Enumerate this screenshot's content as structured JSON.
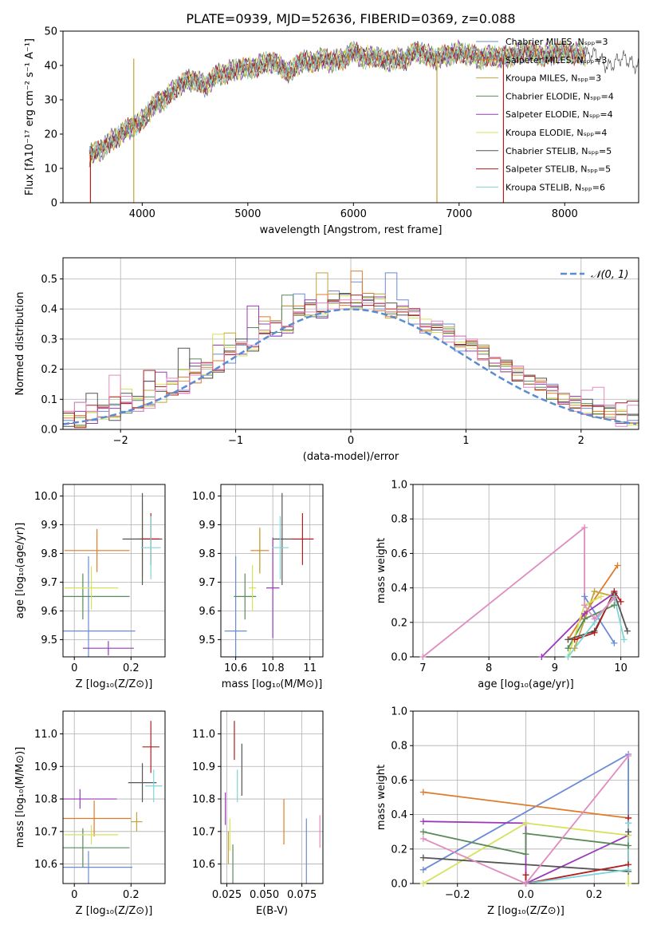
{
  "title": "PLATE=0939, MJD=52636, FIBERID=0369, z=0.088",
  "colors": [
    "#6a8bd6",
    "#e07b2a",
    "#c3a33a",
    "#5a8a5a",
    "#9a3ab8",
    "#d6e35a",
    "#555555",
    "#b01e1e",
    "#7ed6d6"
  ],
  "chart_data": [
    {
      "id": "spectrum",
      "type": "line",
      "xlabel": "wavelength [Angstrom, rest frame]",
      "ylabel": "Flux [fλ10⁻¹⁷ erg cm⁻² s⁻¹ A⁻¹]",
      "xlim": [
        3250,
        8700
      ],
      "ylim": [
        0,
        50
      ],
      "xticks": [
        4000,
        5000,
        6000,
        7000,
        8000
      ],
      "yticks": [
        0,
        10,
        20,
        30,
        40,
        50
      ],
      "grid": false,
      "legend_position": "right",
      "legend": [
        "Chabrier MILES, Nₛₚₚ=3",
        "Salpeter MILES, Nₛₚₚ=3",
        "Kroupa MILES, Nₛₚₚ=3",
        "Chabrier ELODIE, Nₛₚₚ=4",
        "Salpeter ELODIE, Nₛₚₚ=4",
        "Kroupa ELODIE, Nₛₚₚ=4",
        "Chabrier STELIB, Nₛₚₚ=5",
        "Salpeter STELIB, Nₛₚₚ=5",
        "Kroupa STELIB, Nₛₚₚ=6"
      ],
      "x": [
        3500,
        3600,
        3700,
        3800,
        3900,
        4000,
        4100,
        4200,
        4300,
        4400,
        4500,
        4600,
        4700,
        4800,
        4900,
        5000,
        5100,
        5200,
        5300,
        5400,
        5500,
        5600,
        5700,
        5800,
        5900,
        6000,
        6100,
        6200,
        6300,
        6400,
        6500,
        6600,
        6700,
        6800,
        6900,
        7000,
        7100,
        7200,
        7300,
        7400,
        7600,
        7800,
        8000,
        8200,
        8400
      ],
      "y": [
        14,
        15,
        18,
        20,
        22,
        24,
        28,
        30,
        33,
        35,
        36,
        34,
        37,
        38,
        39,
        39,
        40,
        41,
        40,
        38,
        41,
        41,
        42,
        41,
        42,
        44,
        42,
        43,
        41,
        42,
        42,
        44,
        43,
        42,
        43,
        44,
        43,
        42,
        43,
        42,
        44,
        43,
        44,
        43,
        41
      ],
      "vertical_drops": [
        3510,
        3920,
        6790,
        7420
      ]
    },
    {
      "id": "residuals",
      "type": "histogram",
      "xlabel": "(data-model)/error",
      "ylabel": "Normed distribution",
      "xlim": [
        -2.5,
        2.5
      ],
      "ylim": [
        0,
        0.57
      ],
      "xticks": [
        -2,
        -1,
        0,
        1,
        2
      ],
      "yticks": [
        0.0,
        0.1,
        0.2,
        0.3,
        0.4,
        0.5
      ],
      "grid": true,
      "legend_position": "top-right",
      "legend": [
        "𝒩(0, 1)"
      ],
      "bin_width": 0.1,
      "bins": [
        -2.5,
        -2.4,
        -2.3,
        -2.2,
        -2.1,
        -2.0,
        -1.9,
        -1.8,
        -1.7,
        -1.6,
        -1.5,
        -1.4,
        -1.3,
        -1.2,
        -1.1,
        -1.0,
        -0.9,
        -0.8,
        -0.7,
        -0.6,
        -0.5,
        -0.4,
        -0.3,
        -0.2,
        -0.1,
        0.0,
        0.1,
        0.2,
        0.3,
        0.4,
        0.5,
        0.6,
        0.7,
        0.8,
        0.9,
        1.0,
        1.1,
        1.2,
        1.3,
        1.4,
        1.5,
        1.6,
        1.7,
        1.8,
        1.9,
        2.0,
        2.1,
        2.2,
        2.3,
        2.4
      ],
      "values": [
        0.03,
        0.03,
        0.04,
        0.05,
        0.06,
        0.07,
        0.08,
        0.1,
        0.11,
        0.13,
        0.15,
        0.17,
        0.19,
        0.22,
        0.24,
        0.26,
        0.29,
        0.31,
        0.33,
        0.35,
        0.37,
        0.39,
        0.4,
        0.41,
        0.42,
        0.43,
        0.42,
        0.41,
        0.4,
        0.39,
        0.37,
        0.35,
        0.33,
        0.31,
        0.29,
        0.27,
        0.25,
        0.22,
        0.2,
        0.18,
        0.16,
        0.14,
        0.12,
        0.1,
        0.08,
        0.07,
        0.06,
        0.05,
        0.04,
        0.03
      ],
      "wiggle": [
        0.0,
        0.01,
        -0.01,
        0.01,
        0.02,
        -0.01,
        0.03,
        -0.02,
        0.02,
        0.03,
        -0.02,
        0.02,
        -0.01,
        0.03,
        -0.02,
        0.02,
        0.01,
        0.02,
        -0.02,
        0.06,
        0.08,
        0.03,
        -0.03,
        0.05,
        0.03,
        0.06,
        0.02,
        -0.01,
        0.12,
        0.04,
        -0.02,
        -0.03,
        0.02,
        0.04,
        -0.03,
        0.01,
        0.03,
        -0.02,
        0.01,
        0.03,
        -0.01,
        0.02,
        0.03,
        -0.01,
        0.02,
        0.0,
        0.02,
        -0.01,
        0.01,
        0.0
      ]
    },
    {
      "id": "age-vs-Z",
      "type": "errorbar",
      "xlabel": "Z [log₁₀(Z/Z⊙)]",
      "ylabel": "age  [log₁₀(age/yr)]",
      "xlim": [
        -0.04,
        0.32
      ],
      "ylim": [
        9.44,
        10.04
      ],
      "xticks": [
        0.0,
        0.2
      ],
      "yticks": [
        9.5,
        9.6,
        9.7,
        9.8,
        9.9,
        10.0
      ],
      "grid": true,
      "points": [
        {
          "x": 0.05,
          "y": 9.53,
          "xerr": 0.165,
          "yerr": 0.26,
          "c": 0
        },
        {
          "x": 0.08,
          "y": 9.81,
          "xerr": 0.115,
          "yerr": 0.075,
          "c": 1
        },
        {
          "x": 0.24,
          "y": 9.85,
          "xerr": 0.02,
          "yerr": 0.13,
          "c": 2
        },
        {
          "x": 0.03,
          "y": 9.65,
          "xerr": 0.165,
          "yerr": 0.08,
          "c": 3
        },
        {
          "x": 0.12,
          "y": 9.47,
          "xerr": 0.09,
          "yerr": 0.025,
          "c": 4
        },
        {
          "x": 0.06,
          "y": 9.68,
          "xerr": 0.095,
          "yerr": 0.075,
          "c": 5
        },
        {
          "x": 0.24,
          "y": 9.85,
          "xerr": 0.07,
          "yerr": 0.16,
          "c": 6
        },
        {
          "x": 0.27,
          "y": 9.85,
          "xerr": 0.03,
          "yerr": 0.09,
          "c": 7
        },
        {
          "x": 0.27,
          "y": 9.82,
          "xerr": 0.035,
          "yerr": 0.11,
          "c": 8
        }
      ]
    },
    {
      "id": "age-vs-mass",
      "type": "errorbar",
      "xlabel": "mass [log₁₀(M/M⊙)]",
      "ylabel": "",
      "xlim": [
        10.52,
        11.07
      ],
      "ylim": [
        9.44,
        10.04
      ],
      "xticks": [
        10.6,
        10.8,
        11.0
      ],
      "yticks": [
        9.5,
        9.6,
        9.7,
        9.8,
        9.9,
        10.0
      ],
      "grid": true,
      "points": [
        {
          "x": 10.6,
          "y": 9.53,
          "xerr": 0.06,
          "yerr": 0.26,
          "c": 0
        },
        {
          "x": 10.73,
          "y": 9.81,
          "xerr": 0.05,
          "yerr": 0.075,
          "c": 1
        },
        {
          "x": 10.73,
          "y": 9.81,
          "xerr": 0.01,
          "yerr": 0.08,
          "c": 2
        },
        {
          "x": 10.65,
          "y": 9.65,
          "xerr": 0.06,
          "yerr": 0.08,
          "c": 3
        },
        {
          "x": 10.8,
          "y": 9.68,
          "xerr": 0.035,
          "yerr": 0.175,
          "c": 4
        },
        {
          "x": 10.69,
          "y": 9.68,
          "xerr": 0.02,
          "yerr": 0.08,
          "c": 5
        },
        {
          "x": 10.85,
          "y": 9.85,
          "xerr": 0.05,
          "yerr": 0.16,
          "c": 6
        },
        {
          "x": 10.96,
          "y": 9.85,
          "xerr": 0.06,
          "yerr": 0.09,
          "c": 7
        },
        {
          "x": 10.84,
          "y": 9.82,
          "xerr": 0.045,
          "yerr": 0.11,
          "c": 8
        }
      ]
    },
    {
      "id": "weight-vs-age",
      "type": "line",
      "xlabel": "age  [log₁₀(age/yr)]",
      "ylabel": "mass weight",
      "xlim": [
        6.85,
        10.27
      ],
      "ylim": [
        0,
        1.0
      ],
      "xticks": [
        7,
        8,
        9,
        10
      ],
      "yticks": [
        0.0,
        0.2,
        0.4,
        0.6,
        0.8,
        1.0
      ],
      "grid": true,
      "series": [
        {
          "c": 0,
          "x": [
            9.45,
            9.9
          ],
          "y": [
            0.35,
            0.08
          ]
        },
        {
          "c": 1,
          "x": [
            9.2,
            9.45,
            9.95
          ],
          "y": [
            0.1,
            0.25,
            0.53
          ]
        },
        {
          "c": 2,
          "x": [
            9.3,
            9.6,
            9.9
          ],
          "y": [
            0.05,
            0.38,
            0.35
          ]
        },
        {
          "c": 3,
          "x": [
            9.2,
            9.45,
            9.9
          ],
          "y": [
            0.05,
            0.22,
            0.3
          ]
        },
        {
          "c": 4,
          "x": [
            8.8,
            9.45,
            9.9
          ],
          "y": [
            0.0,
            0.25,
            0.37
          ]
        },
        {
          "c": 5,
          "x": [
            9.2,
            9.45,
            9.7
          ],
          "y": [
            0.0,
            0.3,
            0.35
          ]
        },
        {
          "c": 6,
          "x": [
            9.2,
            9.6,
            9.9,
            10.1
          ],
          "y": [
            0.1,
            0.15,
            0.37,
            0.15
          ]
        },
        {
          "c": 7,
          "x": [
            9.3,
            9.6,
            9.9,
            10.0
          ],
          "y": [
            0.1,
            0.14,
            0.38,
            0.32
          ]
        },
        {
          "c": 8,
          "x": [
            9.2,
            9.6,
            9.9,
            10.05
          ],
          "y": [
            0.0,
            0.2,
            0.35,
            0.1
          ]
        },
        {
          "c": 10,
          "x": [
            7.0,
            9.45,
            9.45,
            9.6,
            9.9
          ],
          "y": [
            0.0,
            0.75,
            0.3,
            0.22,
            0.34
          ]
        }
      ]
    },
    {
      "id": "mass-vs-Z",
      "type": "errorbar",
      "xlabel": "Z [log₁₀(Z/Z⊙)]",
      "ylabel": "mass [log₁₀(M/M⊙)]",
      "xlim": [
        -0.04,
        0.32
      ],
      "ylim": [
        10.54,
        11.07
      ],
      "xticks": [
        0.0,
        0.2
      ],
      "yticks": [
        10.6,
        10.7,
        10.8,
        10.9,
        11.0
      ],
      "grid": true,
      "points": [
        {
          "x": 0.05,
          "y": 10.59,
          "xerr": 0.155,
          "yerr": 0.05,
          "c": 0
        },
        {
          "x": 0.07,
          "y": 10.74,
          "xerr": 0.13,
          "yerr": 0.055,
          "c": 1
        },
        {
          "x": 0.22,
          "y": 10.73,
          "xerr": 0.02,
          "yerr": 0.03,
          "c": 2
        },
        {
          "x": 0.03,
          "y": 10.65,
          "xerr": 0.165,
          "yerr": 0.06,
          "c": 3
        },
        {
          "x": 0.02,
          "y": 10.8,
          "xerr": 0.13,
          "yerr": 0.03,
          "c": 4
        },
        {
          "x": 0.06,
          "y": 10.69,
          "xerr": 0.095,
          "yerr": 0.03,
          "c": 5
        },
        {
          "x": 0.24,
          "y": 10.85,
          "xerr": 0.05,
          "yerr": 0.06,
          "c": 6
        },
        {
          "x": 0.27,
          "y": 10.96,
          "xerr": 0.03,
          "yerr": 0.08,
          "c": 7
        },
        {
          "x": 0.28,
          "y": 10.84,
          "xerr": 0.03,
          "yerr": 0.05,
          "c": 8
        }
      ]
    },
    {
      "id": "mass-vs-ebv",
      "type": "errorbar",
      "xlabel": "E(B-V)",
      "ylabel": "",
      "xlim": [
        0.021,
        0.089
      ],
      "ylim": [
        10.54,
        11.07
      ],
      "xticks": [
        0.025,
        0.05,
        0.075
      ],
      "yticks": [
        10.6,
        10.7,
        10.8,
        10.9,
        11.0
      ],
      "tick_labels_x": [
        "0.025",
        "0.050",
        "0.075"
      ],
      "grid": true,
      "points": [
        {
          "x": 0.078,
          "y": 10.64,
          "xerr": 0,
          "yerr": 0.1,
          "c": 0
        },
        {
          "x": 0.063,
          "y": 10.73,
          "xerr": 0,
          "yerr": 0.07,
          "c": 1
        },
        {
          "x": 0.026,
          "y": 10.65,
          "xerr": 0,
          "yerr": 0.05,
          "c": 2
        },
        {
          "x": 0.029,
          "y": 10.6,
          "xerr": 0,
          "yerr": 0.06,
          "c": 3
        },
        {
          "x": 0.024,
          "y": 10.77,
          "xerr": 0,
          "yerr": 0.05,
          "c": 4
        },
        {
          "x": 0.027,
          "y": 10.69,
          "xerr": 0,
          "yerr": 0.05,
          "c": 5
        },
        {
          "x": 0.035,
          "y": 10.89,
          "xerr": 0,
          "yerr": 0.08,
          "c": 6
        },
        {
          "x": 0.03,
          "y": 10.98,
          "xerr": 0,
          "yerr": 0.06,
          "c": 7
        },
        {
          "x": 0.032,
          "y": 10.84,
          "xerr": 0,
          "yerr": 0.05,
          "c": 8
        },
        {
          "x": 0.087,
          "y": 10.7,
          "xerr": 0,
          "yerr": 0.05,
          "c": 10
        }
      ]
    },
    {
      "id": "weight-vs-Z",
      "type": "line",
      "xlabel": "Z [log₁₀(Z/Z⊙)]",
      "ylabel": "mass weight",
      "xlim": [
        -0.33,
        0.33
      ],
      "ylim": [
        0,
        1.0
      ],
      "xticks": [
        -0.2,
        0.0,
        0.2
      ],
      "yticks": [
        0.0,
        0.2,
        0.4,
        0.6,
        0.8,
        1.0
      ],
      "tick_labels_x": [
        "−0.2",
        "0.0",
        "0.2"
      ],
      "grid": true,
      "series": [
        {
          "c": 0,
          "x": [
            -0.3,
            0.3,
            0.3
          ],
          "y": [
            0.08,
            0.75,
            0.35
          ]
        },
        {
          "c": 1,
          "x": [
            -0.3,
            0.3
          ],
          "y": [
            0.53,
            0.38
          ]
        },
        {
          "c": 4,
          "x": [
            -0.3,
            0.0,
            0.0,
            0.3
          ],
          "y": [
            0.36,
            0.35,
            0.0,
            0.28
          ]
        },
        {
          "c": 5,
          "x": [
            -0.3,
            0.0,
            0.3,
            0.3
          ],
          "y": [
            0.0,
            0.35,
            0.28,
            0.0
          ]
        },
        {
          "c": 3,
          "x": [
            -0.3,
            0.0,
            0.0,
            0.3
          ],
          "y": [
            0.3,
            0.17,
            0.29,
            0.22
          ]
        },
        {
          "c": 6,
          "x": [
            -0.3,
            0.3,
            0.3
          ],
          "y": [
            0.15,
            0.07,
            0.3
          ]
        },
        {
          "c": 7,
          "x": [
            0.0,
            0.0,
            0.3,
            0.3
          ],
          "y": [
            0.05,
            0.0,
            0.11,
            0.38
          ]
        },
        {
          "c": 8,
          "x": [
            0.0,
            0.3,
            0.3
          ],
          "y": [
            0.0,
            0.08,
            0.35
          ]
        },
        {
          "c": 10,
          "x": [
            -0.3,
            0.0,
            0.3
          ],
          "y": [
            0.26,
            0.0,
            0.74
          ]
        }
      ]
    }
  ],
  "extra_color": "#e08cc0"
}
